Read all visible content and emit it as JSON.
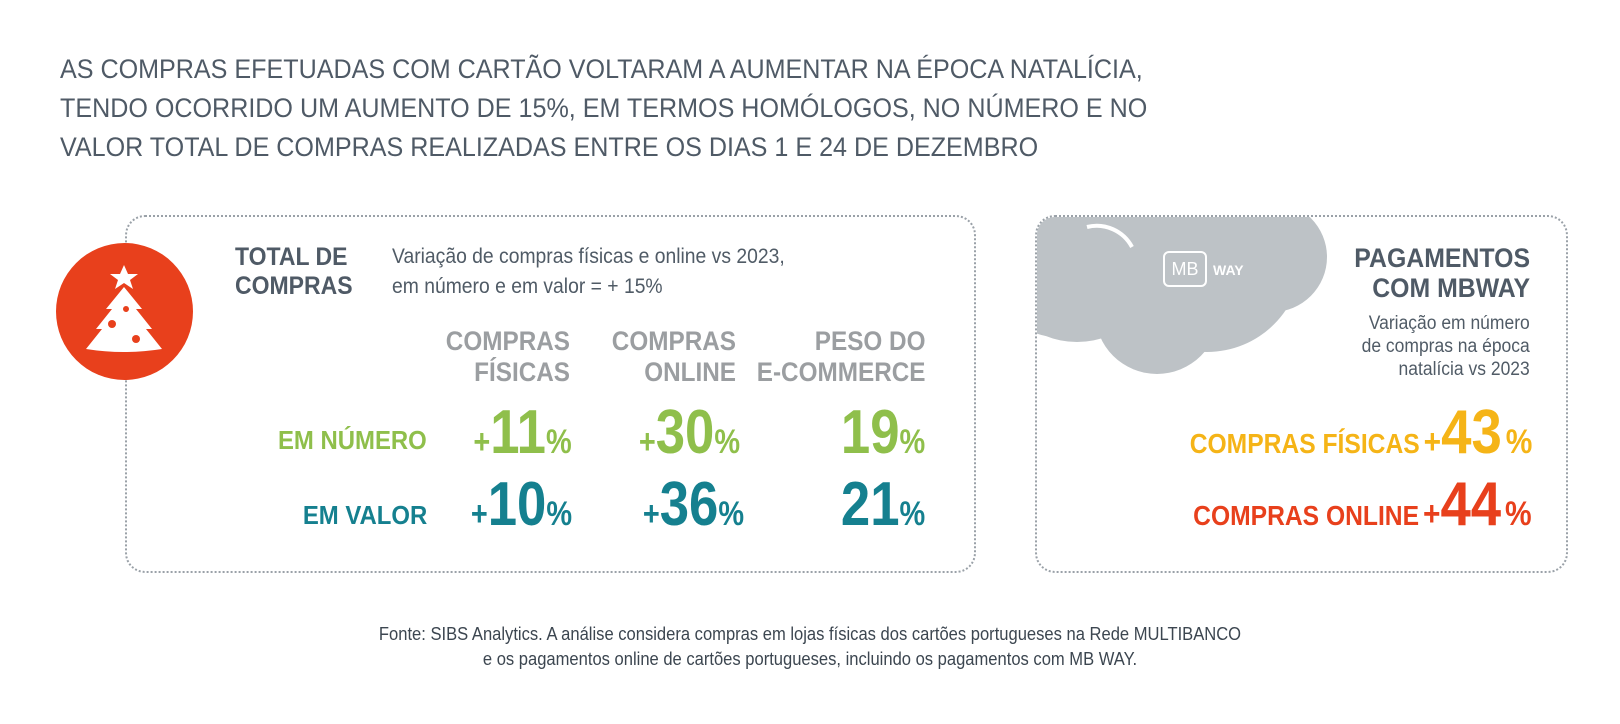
{
  "headline": {
    "line1": "AS COMPRAS EFETUADAS COM CARTÃO VOLTARAM A AUMENTAR NA ÉPOCA NATALÍCIA,",
    "line2": "TENDO OCORRIDO UM AUMENTO DE 15%, EM TERMOS HOMÓLOGOS, NO NÚMERO E NO",
    "line3": "VALOR TOTAL DE COMPRAS REALIZADAS ENTRE OS DIAS 1 E 24 DE DEZEMBRO"
  },
  "total_card": {
    "title_line1": "TOTAL DE",
    "title_line2": "COMPRAS",
    "subtitle_line1": "Variação de compras físicas e online vs 2023,",
    "subtitle_line2": "em número e em valor = + 15%",
    "columns": {
      "fisicas": [
        "COMPRAS",
        "FÍSICAS"
      ],
      "online": [
        "COMPRAS",
        "ONLINE"
      ],
      "peso": [
        "PESO DO",
        "E-COMMERCE"
      ]
    },
    "rows": {
      "numero": {
        "label": "EM NÚMERO",
        "fisicas": "11",
        "online": "30",
        "peso": "19"
      },
      "valor": {
        "label": "EM VALOR",
        "fisicas": "10",
        "online": "36",
        "peso": "21"
      }
    },
    "plus": "+",
    "percent": "%",
    "colors": {
      "numero": "#8fbf4b",
      "valor": "#15808f",
      "accent": "#e8401c"
    }
  },
  "mbway_card": {
    "logo_mb": "MB",
    "logo_way": "WAY",
    "title_line1": "PAGAMENTOS",
    "title_line2": "COM MBWAY",
    "sub_line1": "Variação em número",
    "sub_line2": "de compras na época",
    "sub_line3": "natalícia vs 2023",
    "rows": [
      {
        "label": "COMPRAS FÍSICAS",
        "value": "43",
        "color": "#f5b417"
      },
      {
        "label": "COMPRAS ONLINE",
        "value": "44",
        "color": "#e8401c"
      }
    ],
    "plus": "+",
    "percent": "%"
  },
  "source": {
    "line1": "Fonte: SIBS Analytics. A análise considera compras em lojas físicas dos cartões portugueses na Rede MULTIBANCO",
    "line2": "e os pagamentos online de cartões portugueses, incluindo os pagamentos com MB WAY."
  }
}
